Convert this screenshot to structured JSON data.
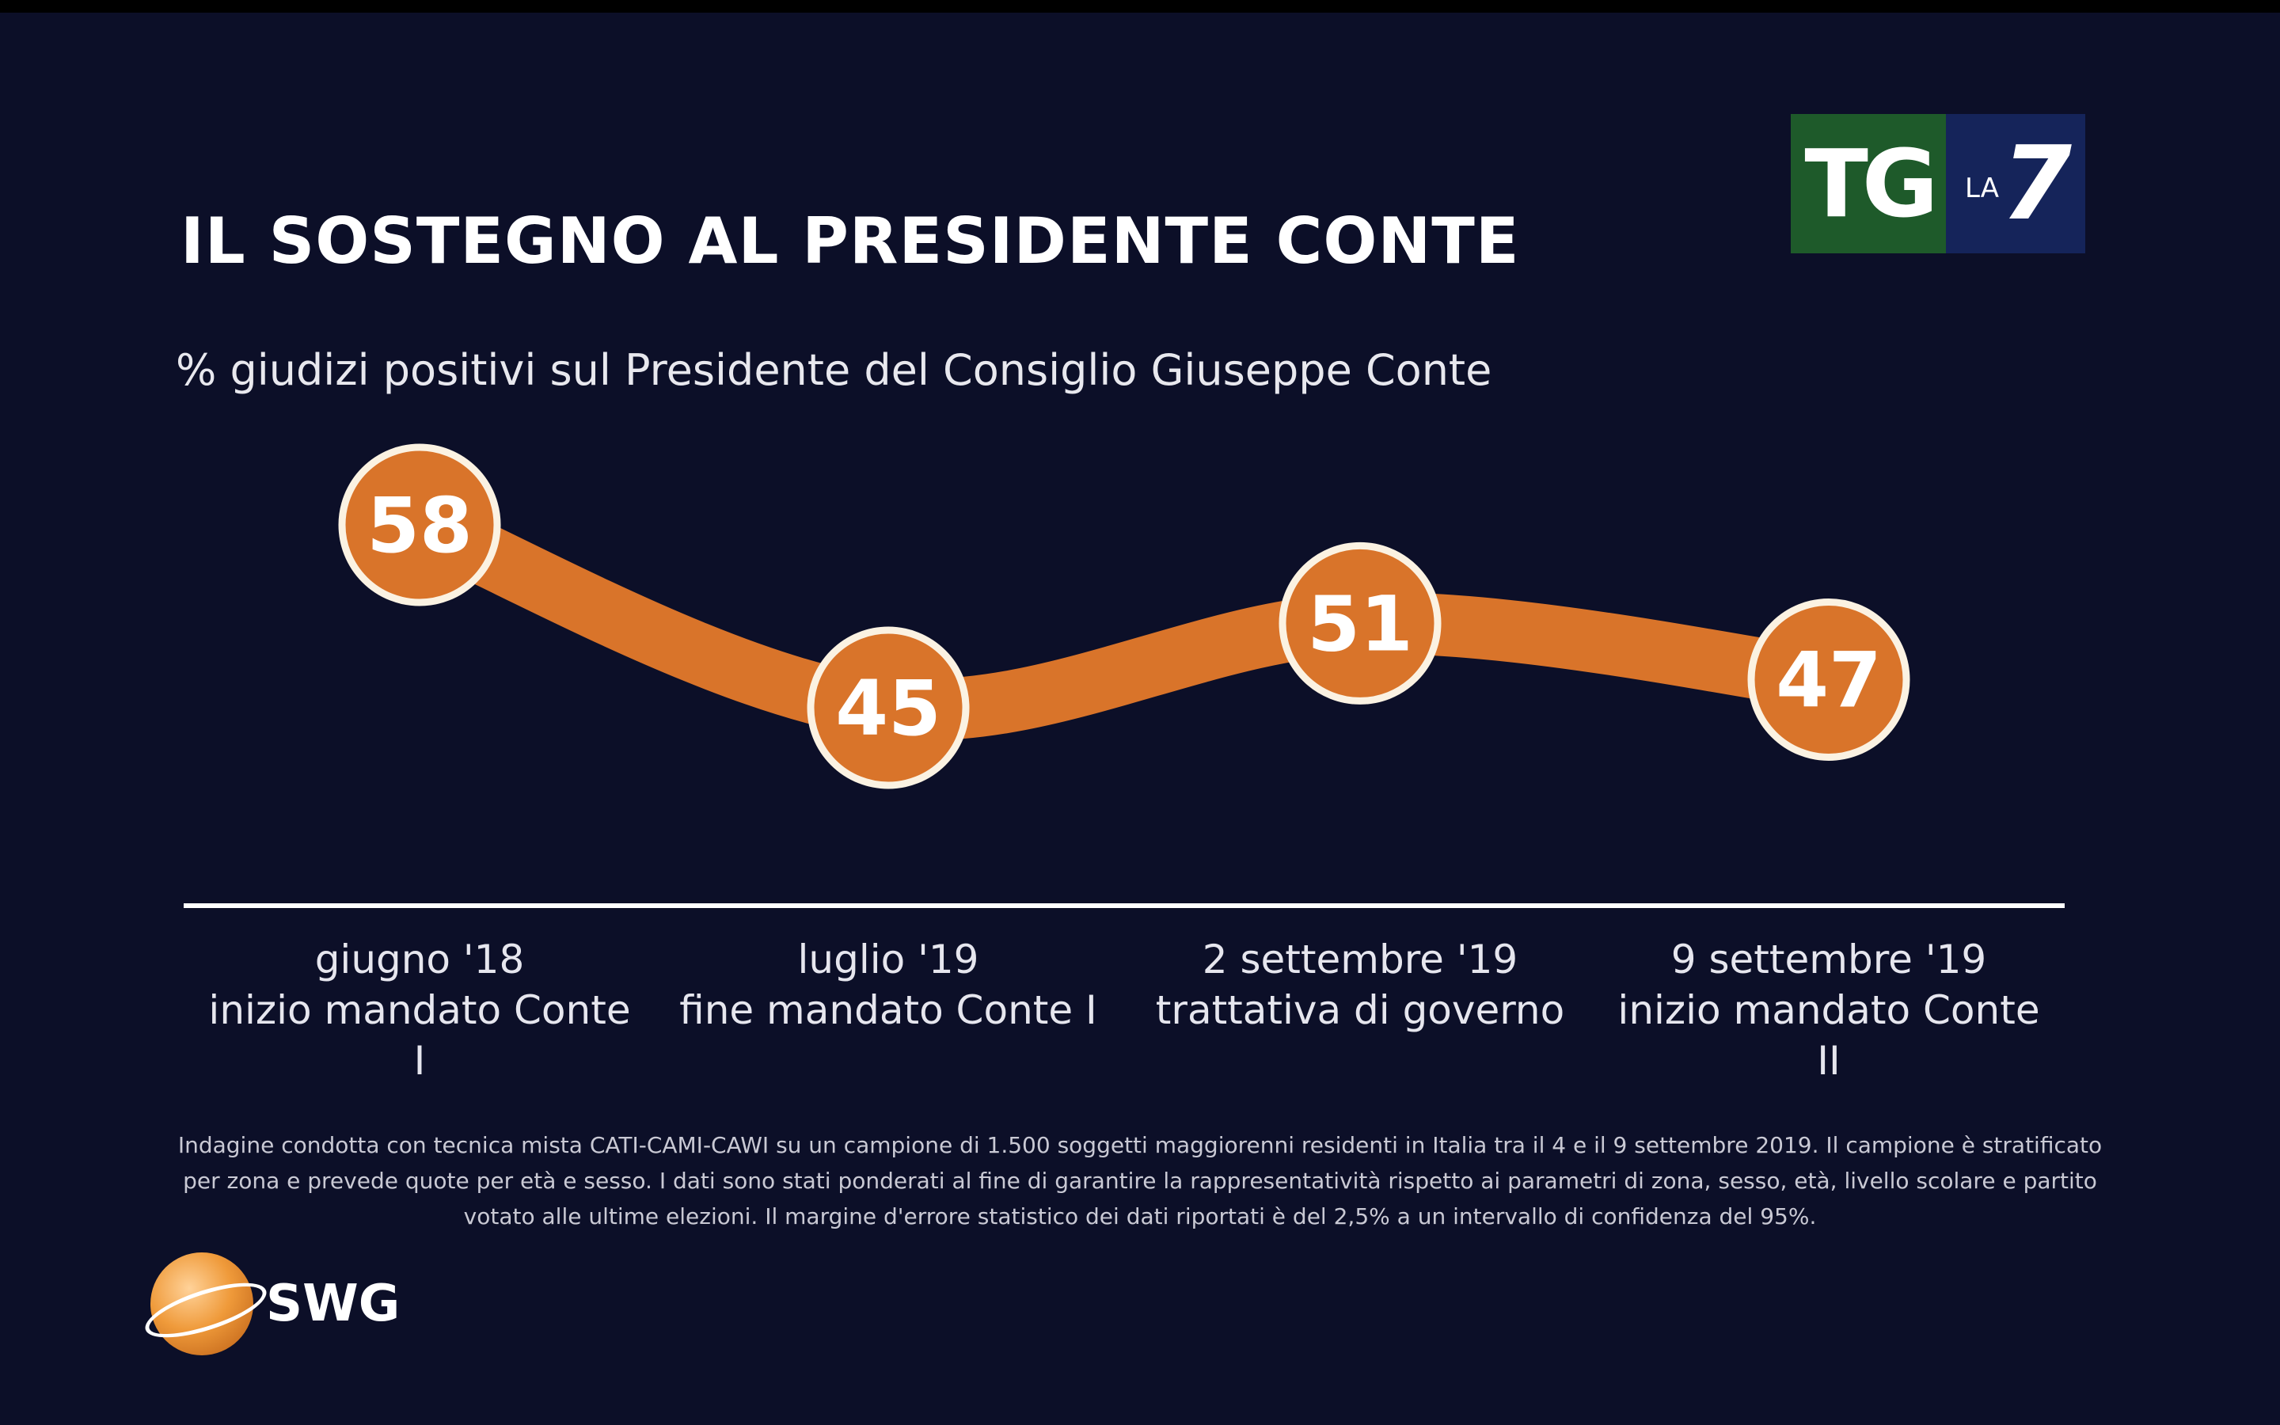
{
  "title": "IL SOSTEGNO AL PRESIDENTE CONTE",
  "subtitle": "% giudizi positivi sul Presidente del Consiglio Giuseppe Conte",
  "logo": {
    "tg": "TG",
    "la": "LA",
    "seven": "7"
  },
  "colors": {
    "background": "#0c0f28",
    "line": "#d9742a",
    "marker_fill": "#d9742a",
    "marker_stroke": "#fbf2e2",
    "axis": "#ffffff"
  },
  "chart_data": {
    "type": "line",
    "categories": [
      [
        "giugno '18",
        "inizio mandato Conte I"
      ],
      [
        "luglio '19",
        "fine mandato Conte I"
      ],
      [
        "2 settembre '19",
        "trattativa di governo"
      ],
      [
        "9 settembre '19",
        "inizio mandato Conte II"
      ]
    ],
    "values": [
      58,
      45,
      51,
      47
    ],
    "data_labels": [
      "58",
      "45",
      "51",
      "47"
    ],
    "title": "IL SOSTEGNO AL PRESIDENTE CONTE",
    "subtitle": "% giudizi positivi sul Presidente del Consiglio Giuseppe Conte",
    "xlabel": "",
    "ylabel": "",
    "y_axis_visible": false,
    "grid": false,
    "legend": "none"
  },
  "footnote": "Indagine condotta con tecnica mista CATI-CAMI-CAWI su un campione di 1.500 soggetti maggiorenni residenti in Italia tra il 4 e il 9 settembre 2019. Il campione è stratificato per zona e prevede quote per età e sesso. I dati sono stati ponderati al fine di garantire la rappresentatività rispetto ai parametri di zona, sesso, età, livello scolare e partito votato alle ultime elezioni. Il margine d'errore statistico dei dati riportati è del 2,5% a un intervallo di confidenza del 95%.",
  "source_logo": {
    "name": "SWG"
  }
}
